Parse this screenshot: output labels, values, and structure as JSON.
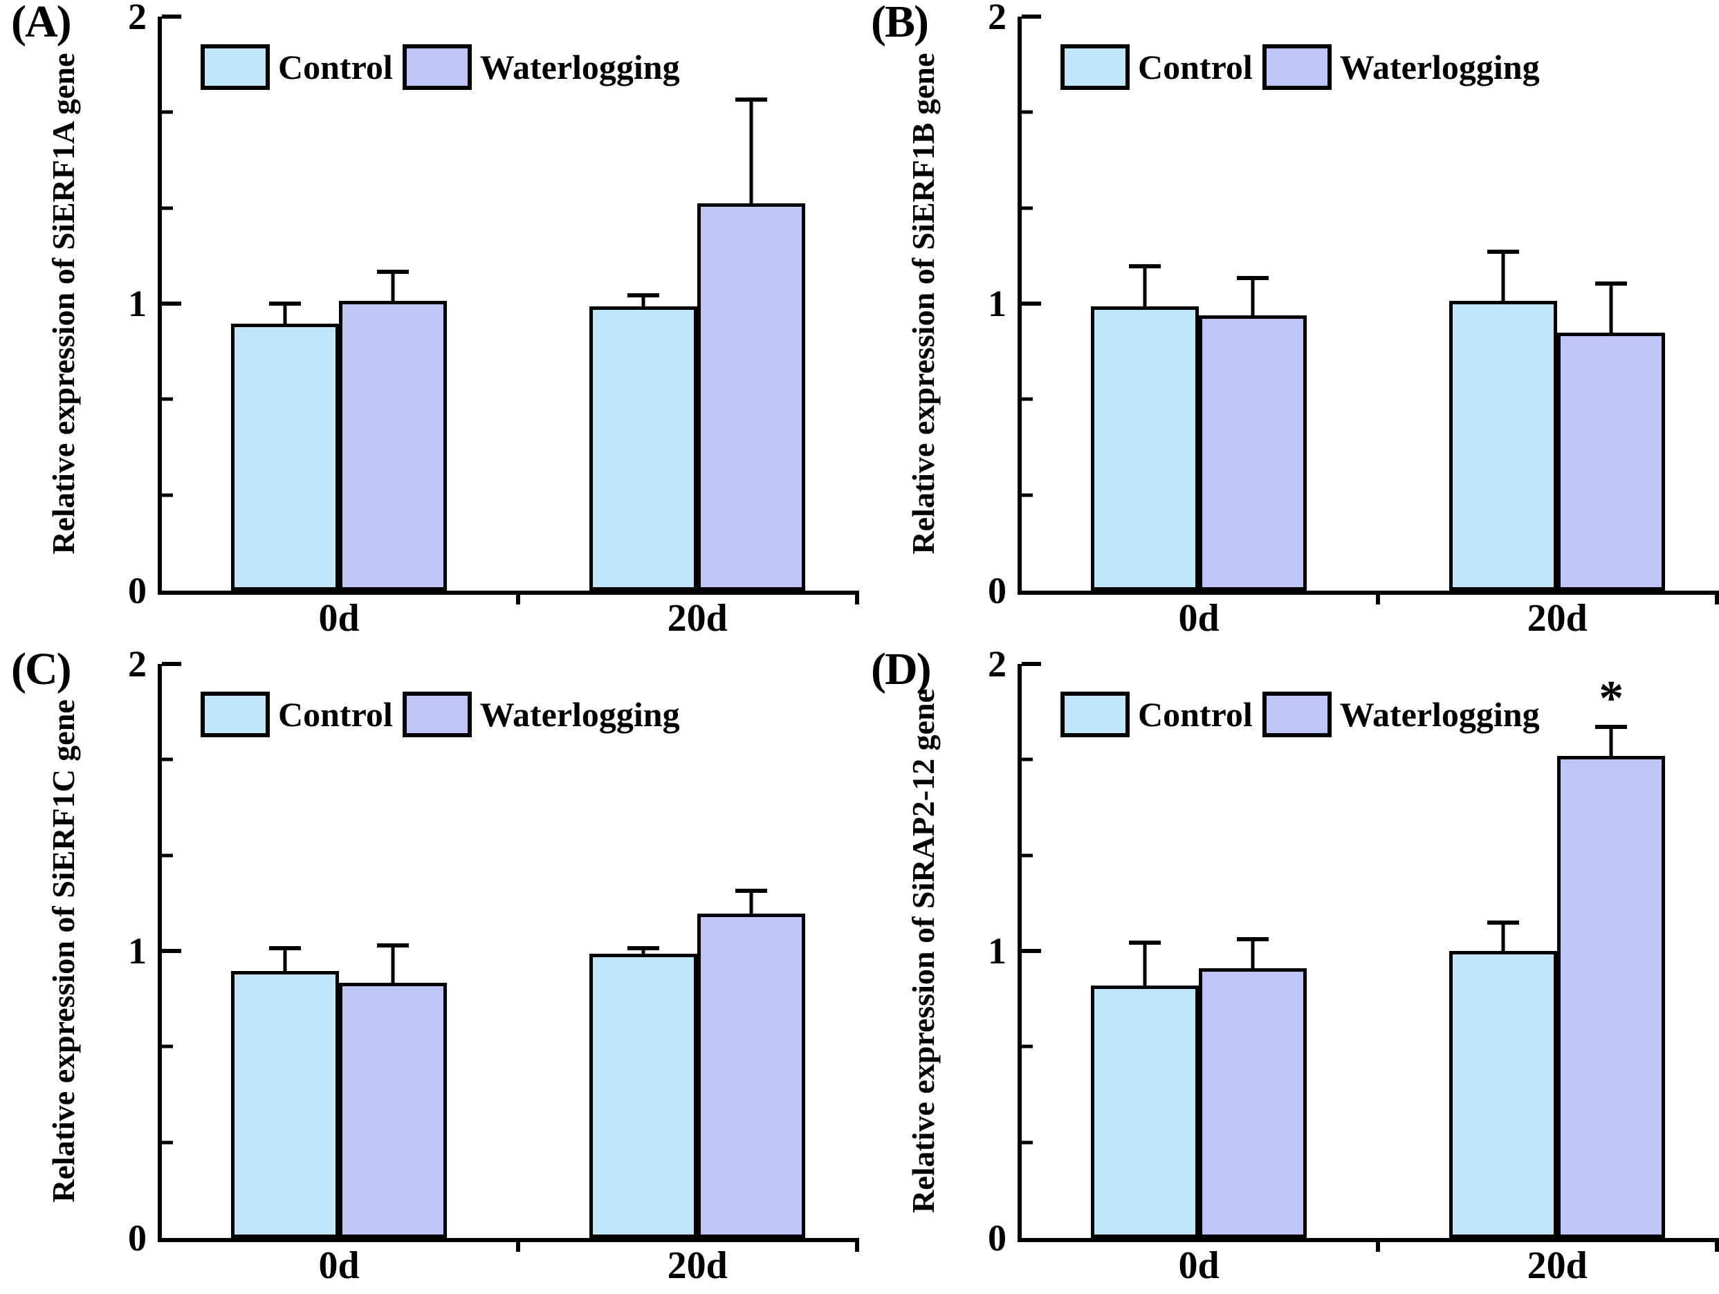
{
  "figure": {
    "background": "#ffffff",
    "text_color": "#000000",
    "axis_color": "#000000"
  },
  "legend": {
    "items": [
      {
        "label": "Control",
        "color": "#bfe6fa"
      },
      {
        "label": "Waterlogging",
        "color": "#bdc5f8"
      }
    ]
  },
  "axes": {
    "ylim": [
      0,
      2
    ],
    "yticks": [
      {
        "value": 0,
        "label": "0"
      },
      {
        "value": 1,
        "label": "1"
      },
      {
        "value": 2,
        "label": "2"
      }
    ],
    "minor_tick_values": [
      0.3333,
      0.6667,
      1.3333,
      1.6667
    ],
    "x_boundary_tick_percents": [
      51.1,
      100
    ]
  },
  "chart_data": [
    {
      "type": "bar",
      "panel_label": "(A)",
      "ylabel": "Relative expression of SiERF1A gene",
      "categories": [
        "0d",
        "20d"
      ],
      "ylim": [
        0,
        2
      ],
      "grid": false,
      "legend_position": "top-left-inside",
      "series": [
        {
          "name": "Control",
          "color": "#bfe6fa",
          "values": [
            0.93,
            0.99
          ],
          "errors_plus": [
            0.07,
            0.04
          ]
        },
        {
          "name": "Waterlogging",
          "color": "#bdc5f8",
          "values": [
            1.01,
            1.35
          ],
          "errors_plus": [
            0.1,
            0.36
          ]
        }
      ],
      "annotations": []
    },
    {
      "type": "bar",
      "panel_label": "(B)",
      "ylabel": "Relative expression of SiERF1B gene",
      "categories": [
        "0d",
        "20d"
      ],
      "ylim": [
        0,
        2
      ],
      "grid": false,
      "legend_position": "top-left-inside",
      "series": [
        {
          "name": "Control",
          "color": "#bfe6fa",
          "values": [
            0.99,
            1.01
          ],
          "errors_plus": [
            0.14,
            0.17
          ]
        },
        {
          "name": "Waterlogging",
          "color": "#bdc5f8",
          "values": [
            0.96,
            0.9
          ],
          "errors_plus": [
            0.13,
            0.17
          ]
        }
      ],
      "annotations": []
    },
    {
      "type": "bar",
      "panel_label": "(C)",
      "ylabel": "Relative expression of SiERF1C gene",
      "categories": [
        "0d",
        "20d"
      ],
      "ylim": [
        0,
        2
      ],
      "grid": false,
      "legend_position": "top-left-inside",
      "series": [
        {
          "name": "Control",
          "color": "#bfe6fa",
          "values": [
            0.93,
            0.99
          ],
          "errors_plus": [
            0.08,
            0.02
          ]
        },
        {
          "name": "Waterlogging",
          "color": "#bdc5f8",
          "values": [
            0.89,
            1.13
          ],
          "errors_plus": [
            0.13,
            0.08
          ]
        }
      ],
      "annotations": []
    },
    {
      "type": "bar",
      "panel_label": "(D)",
      "ylabel": "Relative expression of SiRAP2-12 gene",
      "categories": [
        "0d",
        "20d"
      ],
      "ylim": [
        0,
        2
      ],
      "grid": false,
      "legend_position": "top-left-inside",
      "series": [
        {
          "name": "Control",
          "color": "#bfe6fa",
          "values": [
            0.88,
            1.0
          ],
          "errors_plus": [
            0.15,
            0.1
          ]
        },
        {
          "name": "Waterlogging",
          "color": "#bdc5f8",
          "values": [
            0.94,
            1.68
          ],
          "errors_plus": [
            0.1,
            0.1
          ]
        }
      ],
      "annotations": [
        {
          "text": "*",
          "category_index": 1,
          "series_index": 1,
          "y": 1.88
        }
      ]
    }
  ]
}
